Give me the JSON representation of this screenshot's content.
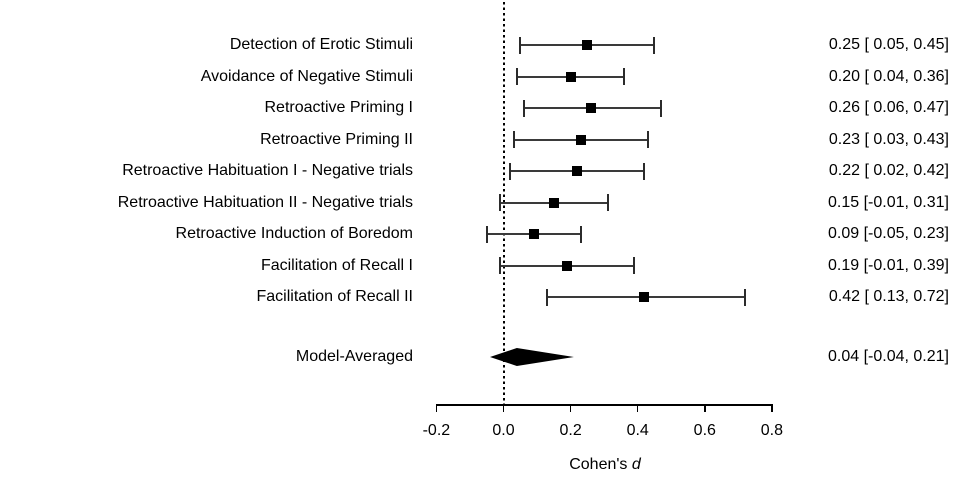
{
  "chart_data": {
    "type": "scatter",
    "variant": "forest-plot",
    "title": "",
    "xlabel": "Cohen's d",
    "xlabel_prefix": "Cohen's ",
    "xlabel_italic": "d",
    "xlim": [
      -0.2,
      0.8
    ],
    "zero_reference_line": 0.0,
    "grid": false,
    "legend": "none",
    "axis_ticks": [
      {
        "value": -0.2,
        "label": "-0.2"
      },
      {
        "value": 0.0,
        "label": "0.0"
      },
      {
        "value": 0.2,
        "label": "0.2"
      },
      {
        "value": 0.4,
        "label": "0.4"
      },
      {
        "value": 0.6,
        "label": "0.6"
      },
      {
        "value": 0.8,
        "label": "0.8"
      }
    ],
    "studies": [
      {
        "label": "Detection of Erotic Stimuli",
        "estimate": 0.25,
        "lower": 0.05,
        "upper": 0.45,
        "annotation": "0.25 [ 0.05, 0.45]"
      },
      {
        "label": "Avoidance of Negative Stimuli",
        "estimate": 0.2,
        "lower": 0.04,
        "upper": 0.36,
        "annotation": "0.20 [ 0.04, 0.36]"
      },
      {
        "label": "Retroactive Priming I",
        "estimate": 0.26,
        "lower": 0.06,
        "upper": 0.47,
        "annotation": "0.26 [ 0.06, 0.47]"
      },
      {
        "label": "Retroactive Priming II",
        "estimate": 0.23,
        "lower": 0.03,
        "upper": 0.43,
        "annotation": "0.23 [ 0.03, 0.43]"
      },
      {
        "label": "Retroactive Habituation I - Negative trials",
        "estimate": 0.22,
        "lower": 0.02,
        "upper": 0.42,
        "annotation": "0.22 [ 0.02, 0.42]"
      },
      {
        "label": "Retroactive Habituation II - Negative trials",
        "estimate": 0.15,
        "lower": -0.01,
        "upper": 0.31,
        "annotation": "0.15 [-0.01, 0.31]"
      },
      {
        "label": "Retroactive Induction of Boredom",
        "estimate": 0.09,
        "lower": -0.05,
        "upper": 0.23,
        "annotation": "0.09 [-0.05, 0.23]"
      },
      {
        "label": "Facilitation of Recall I",
        "estimate": 0.19,
        "lower": -0.01,
        "upper": 0.39,
        "annotation": "0.19 [-0.01, 0.39]"
      },
      {
        "label": "Facilitation of Recall II",
        "estimate": 0.42,
        "lower": 0.13,
        "upper": 0.72,
        "annotation": "0.42 [ 0.13, 0.72]"
      }
    ],
    "summary": {
      "label": "Model-Averaged",
      "estimate": 0.04,
      "lower": -0.04,
      "upper": 0.21,
      "annotation": "0.04 [-0.04, 0.21]"
    },
    "colors": {
      "background": "#ffffff",
      "text": "#000000",
      "marker": "#000000",
      "ci_line": "#3a3a3a",
      "summary_diamond": "#000000"
    }
  }
}
